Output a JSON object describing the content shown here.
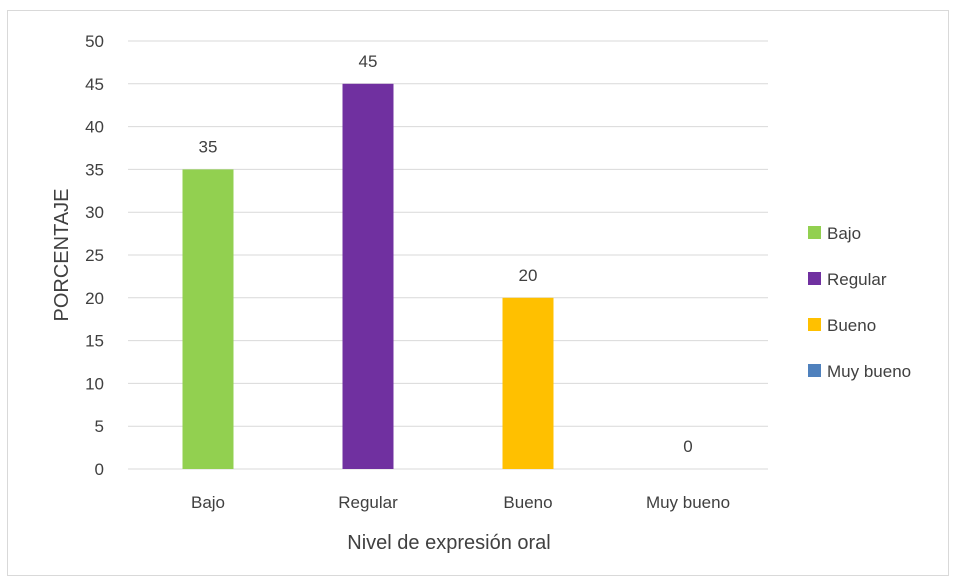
{
  "chart_data": {
    "type": "bar",
    "categories": [
      "Bajo",
      "Regular",
      "Bueno",
      "Muy bueno"
    ],
    "values": [
      35,
      45,
      20,
      0
    ],
    "colors": [
      "#92d050",
      "#7030a0",
      "#ffc000",
      "#4f81bd"
    ],
    "xlabel": "Nivel de expresión oral",
    "ylabel": "PORCENTAJE",
    "ylim": [
      0,
      50
    ],
    "yticks": [
      0,
      5,
      10,
      15,
      20,
      25,
      30,
      35,
      40,
      45,
      50
    ],
    "grid": true,
    "legend": {
      "placement": "right",
      "entries": [
        "Bajo",
        "Regular",
        "Bueno",
        "Muy bueno"
      ]
    }
  }
}
